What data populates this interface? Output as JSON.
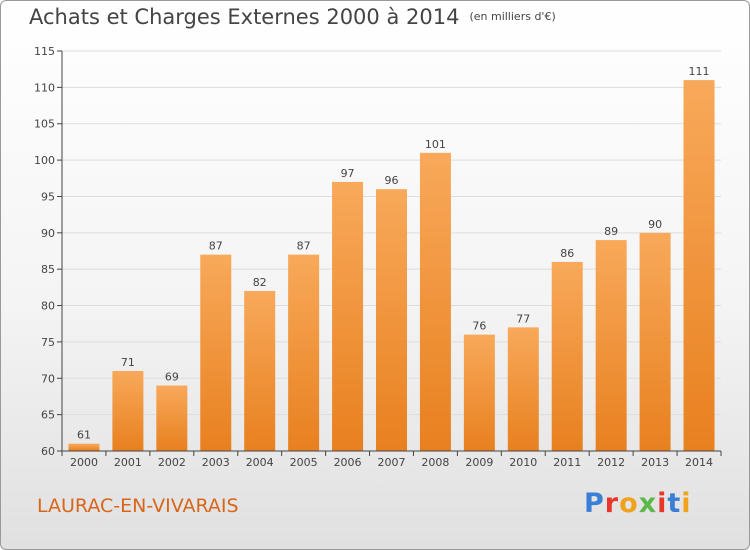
{
  "header": {
    "title": "Achats et Charges Externes 2000 à 2014",
    "unit": "(en milliers d'€)"
  },
  "footer": {
    "town": "LAURAC-EN-VIVARAIS",
    "logo_text": "Proxiti",
    "logo_colors": [
      "#3a7fd5",
      "#e8362b",
      "#f0a21b",
      "#5ab948",
      "#e8362b",
      "#3a7fd5",
      "#f0a21b"
    ]
  },
  "colors": {
    "bar_top": "#f8a95a",
    "bar_bottom": "#e8801f",
    "grid": "#dddddd",
    "axis": "#444444",
    "label": "#444444"
  },
  "chart_data": {
    "type": "bar",
    "title": "Achats et Charges Externes 2000 à 2014",
    "subtitle": "(en milliers d'€)",
    "xlabel": "",
    "ylabel": "",
    "categories": [
      "2000",
      "2001",
      "2002",
      "2003",
      "2004",
      "2005",
      "2006",
      "2007",
      "2008",
      "2009",
      "2010",
      "2011",
      "2012",
      "2013",
      "2014"
    ],
    "values": [
      61,
      71,
      69,
      87,
      82,
      87,
      97,
      96,
      101,
      76,
      77,
      86,
      89,
      90,
      111
    ],
    "ylim": [
      60,
      115
    ],
    "yticks": [
      60,
      65,
      70,
      75,
      80,
      85,
      90,
      95,
      100,
      105,
      110,
      115
    ],
    "grid": true,
    "data_labels": true
  }
}
